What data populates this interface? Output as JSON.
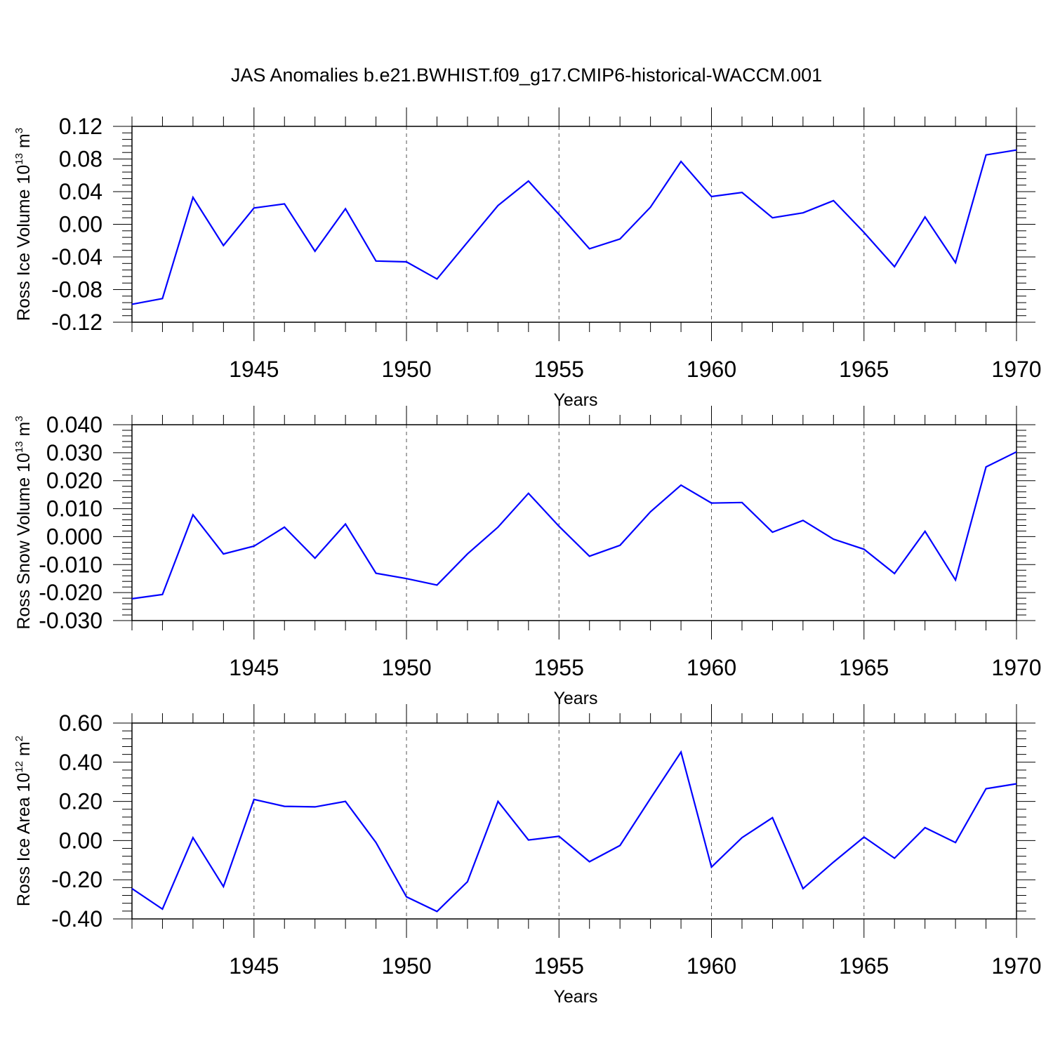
{
  "title": "JAS Anomalies b.e21.BWHIST.f09_g17.CMIP6-historical-WACCM.001",
  "line_color": "#0000ff",
  "chart_data": [
    {
      "type": "line",
      "ylabel": "Ross Ice Volume 10",
      "ylabel_exp": "13",
      "ylabel_unit": " m",
      "ylabel_unit_exp": "3",
      "xlabel": "Years",
      "xlim": [
        1941,
        1970
      ],
      "ylim": [
        -0.12,
        0.12
      ],
      "xticks": [
        1945,
        1950,
        1955,
        1960,
        1965,
        1970
      ],
      "yticks": [
        -0.12,
        -0.08,
        -0.04,
        0.0,
        0.04,
        0.08,
        0.12
      ],
      "ytick_labels": [
        "-0.12",
        "-0.08",
        "-0.04",
        "0.00",
        "0.04",
        "0.08",
        "0.12"
      ],
      "ydecimals": 2,
      "x": [
        1941,
        1942,
        1943,
        1944,
        1945,
        1946,
        1947,
        1948,
        1949,
        1950,
        1951,
        1952,
        1953,
        1954,
        1955,
        1956,
        1957,
        1958,
        1959,
        1960,
        1961,
        1962,
        1963,
        1964,
        1965,
        1966,
        1967,
        1968,
        1969,
        1970
      ],
      "values": [
        -0.098,
        -0.091,
        0.033,
        -0.026,
        0.02,
        0.025,
        -0.033,
        0.019,
        -0.045,
        -0.046,
        -0.067,
        -0.022,
        0.023,
        0.053,
        0.012,
        -0.03,
        -0.018,
        0.021,
        0.077,
        0.034,
        0.039,
        0.008,
        0.014,
        0.029,
        -0.01,
        -0.052,
        0.009,
        -0.047,
        0.085,
        0.091
      ]
    },
    {
      "type": "line",
      "ylabel": "Ross Snow Volume 10",
      "ylabel_exp": "13",
      "ylabel_unit": " m",
      "ylabel_unit_exp": "3",
      "xlabel": "Years",
      "xlim": [
        1941,
        1970
      ],
      "ylim": [
        -0.03,
        0.04
      ],
      "xticks": [
        1945,
        1950,
        1955,
        1960,
        1965,
        1970
      ],
      "yticks": [
        -0.03,
        -0.02,
        -0.01,
        0.0,
        0.01,
        0.02,
        0.03,
        0.04
      ],
      "ytick_labels": [
        "-0.030",
        "-0.020",
        "-0.010",
        "0.000",
        "0.010",
        "0.020",
        "0.030",
        "0.040"
      ],
      "ydecimals": 3,
      "x": [
        1941,
        1942,
        1943,
        1944,
        1945,
        1946,
        1947,
        1948,
        1949,
        1950,
        1951,
        1952,
        1953,
        1954,
        1955,
        1956,
        1957,
        1958,
        1959,
        1960,
        1961,
        1962,
        1963,
        1964,
        1965,
        1966,
        1967,
        1968,
        1969,
        1970
      ],
      "values": [
        -0.0222,
        -0.0207,
        0.0078,
        -0.0062,
        -0.0034,
        0.0034,
        -0.0077,
        0.0045,
        -0.0131,
        -0.015,
        -0.0173,
        -0.0062,
        0.0034,
        0.0155,
        0.0037,
        -0.007,
        -0.0031,
        0.0089,
        0.0184,
        0.012,
        0.0122,
        0.0016,
        0.0058,
        -0.0009,
        -0.0045,
        -0.0132,
        0.0019,
        -0.0155,
        0.0249,
        0.0303
      ]
    },
    {
      "type": "line",
      "ylabel": "Ross Ice Area 10",
      "ylabel_exp": "12",
      "ylabel_unit": " m",
      "ylabel_unit_exp": "2",
      "xlabel": "Years",
      "xlim": [
        1941,
        1970
      ],
      "ylim": [
        -0.4,
        0.6
      ],
      "xticks": [
        1945,
        1950,
        1955,
        1960,
        1965,
        1970
      ],
      "yticks": [
        -0.4,
        -0.2,
        0.0,
        0.2,
        0.4,
        0.6
      ],
      "ytick_labels": [
        "-0.40",
        "-0.20",
        "0.00",
        "0.20",
        "0.40",
        "0.60"
      ],
      "ydecimals": 2,
      "x": [
        1941,
        1942,
        1943,
        1944,
        1945,
        1946,
        1947,
        1948,
        1949,
        1950,
        1951,
        1952,
        1953,
        1954,
        1955,
        1956,
        1957,
        1958,
        1959,
        1960,
        1961,
        1962,
        1963,
        1964,
        1965,
        1966,
        1967,
        1968,
        1969,
        1970
      ],
      "values": [
        -0.245,
        -0.35,
        0.015,
        -0.235,
        0.21,
        0.175,
        0.172,
        0.2,
        -0.01,
        -0.287,
        -0.362,
        -0.21,
        0.2,
        0.003,
        0.022,
        -0.108,
        -0.025,
        0.215,
        0.452,
        -0.135,
        0.015,
        0.117,
        -0.245,
        -0.11,
        0.018,
        -0.09,
        0.066,
        -0.01,
        0.265,
        0.29
      ]
    }
  ]
}
